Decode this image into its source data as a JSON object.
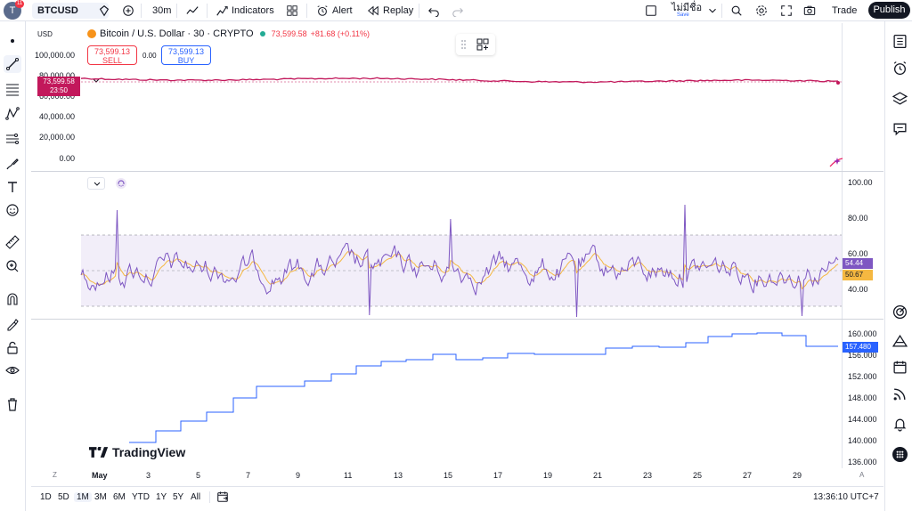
{
  "topbar": {
    "avatar_letter": "T",
    "notif_count": "11",
    "symbol": "BTCUSD",
    "interval": "30m",
    "indicators_label": "Indicators",
    "alert_label": "Alert",
    "replay_label": "Replay",
    "layout_name": "ไม่มีชื่อ",
    "save_label": "Save",
    "trade_label": "Trade",
    "publish_label": "Publish"
  },
  "legend": {
    "currency": "USD",
    "title": "Bitcoin / U.S. Dollar · 30 · CRYPTO",
    "price": "73,599.58",
    "change": "+81.68 (+0.11%)"
  },
  "trade": {
    "sell_price": "73,599.13",
    "sell_label": "SELL",
    "spread": "0.00",
    "buy_price": "73,599.13",
    "buy_label": "BUY"
  },
  "price_pane": {
    "y_labels": [
      "100,000.00",
      "80,000.00",
      "60,000.00",
      "40,000.00",
      "20,000.00",
      "0.00"
    ],
    "last_price": "73,599.58",
    "countdown": "23:50"
  },
  "rsi_pane": {
    "y_labels": [
      "100.00",
      "80.00",
      "60.00",
      "40.00"
    ],
    "rsi_value": "54.44",
    "ma_value": "50.67"
  },
  "third_pane": {
    "y_labels": [
      "160.000",
      "156.000",
      "152.000",
      "148.000",
      "144.000",
      "140.000",
      "136.000"
    ],
    "last_value": "157.480"
  },
  "x_axis": {
    "labels": [
      "May",
      "3",
      "5",
      "7",
      "9",
      "11",
      "13",
      "15",
      "17",
      "19",
      "21",
      "23",
      "25",
      "27",
      "29"
    ],
    "corner_left": "Z",
    "corner_right": "A"
  },
  "bottombar": {
    "ranges": [
      "1D",
      "5D",
      "1M",
      "3M",
      "6M",
      "YTD",
      "1Y",
      "5Y",
      "All"
    ],
    "active_range": "1M",
    "clock": "13:36:10 UTC+7"
  },
  "watermark": "TradingView",
  "colors": {
    "price_line": "#c2185b",
    "rsi_line": "#7e57c2",
    "rsi_ma": "#f5b841",
    "third_line": "#2962ff",
    "sell": "#f23645",
    "buy": "#2962ff"
  }
}
